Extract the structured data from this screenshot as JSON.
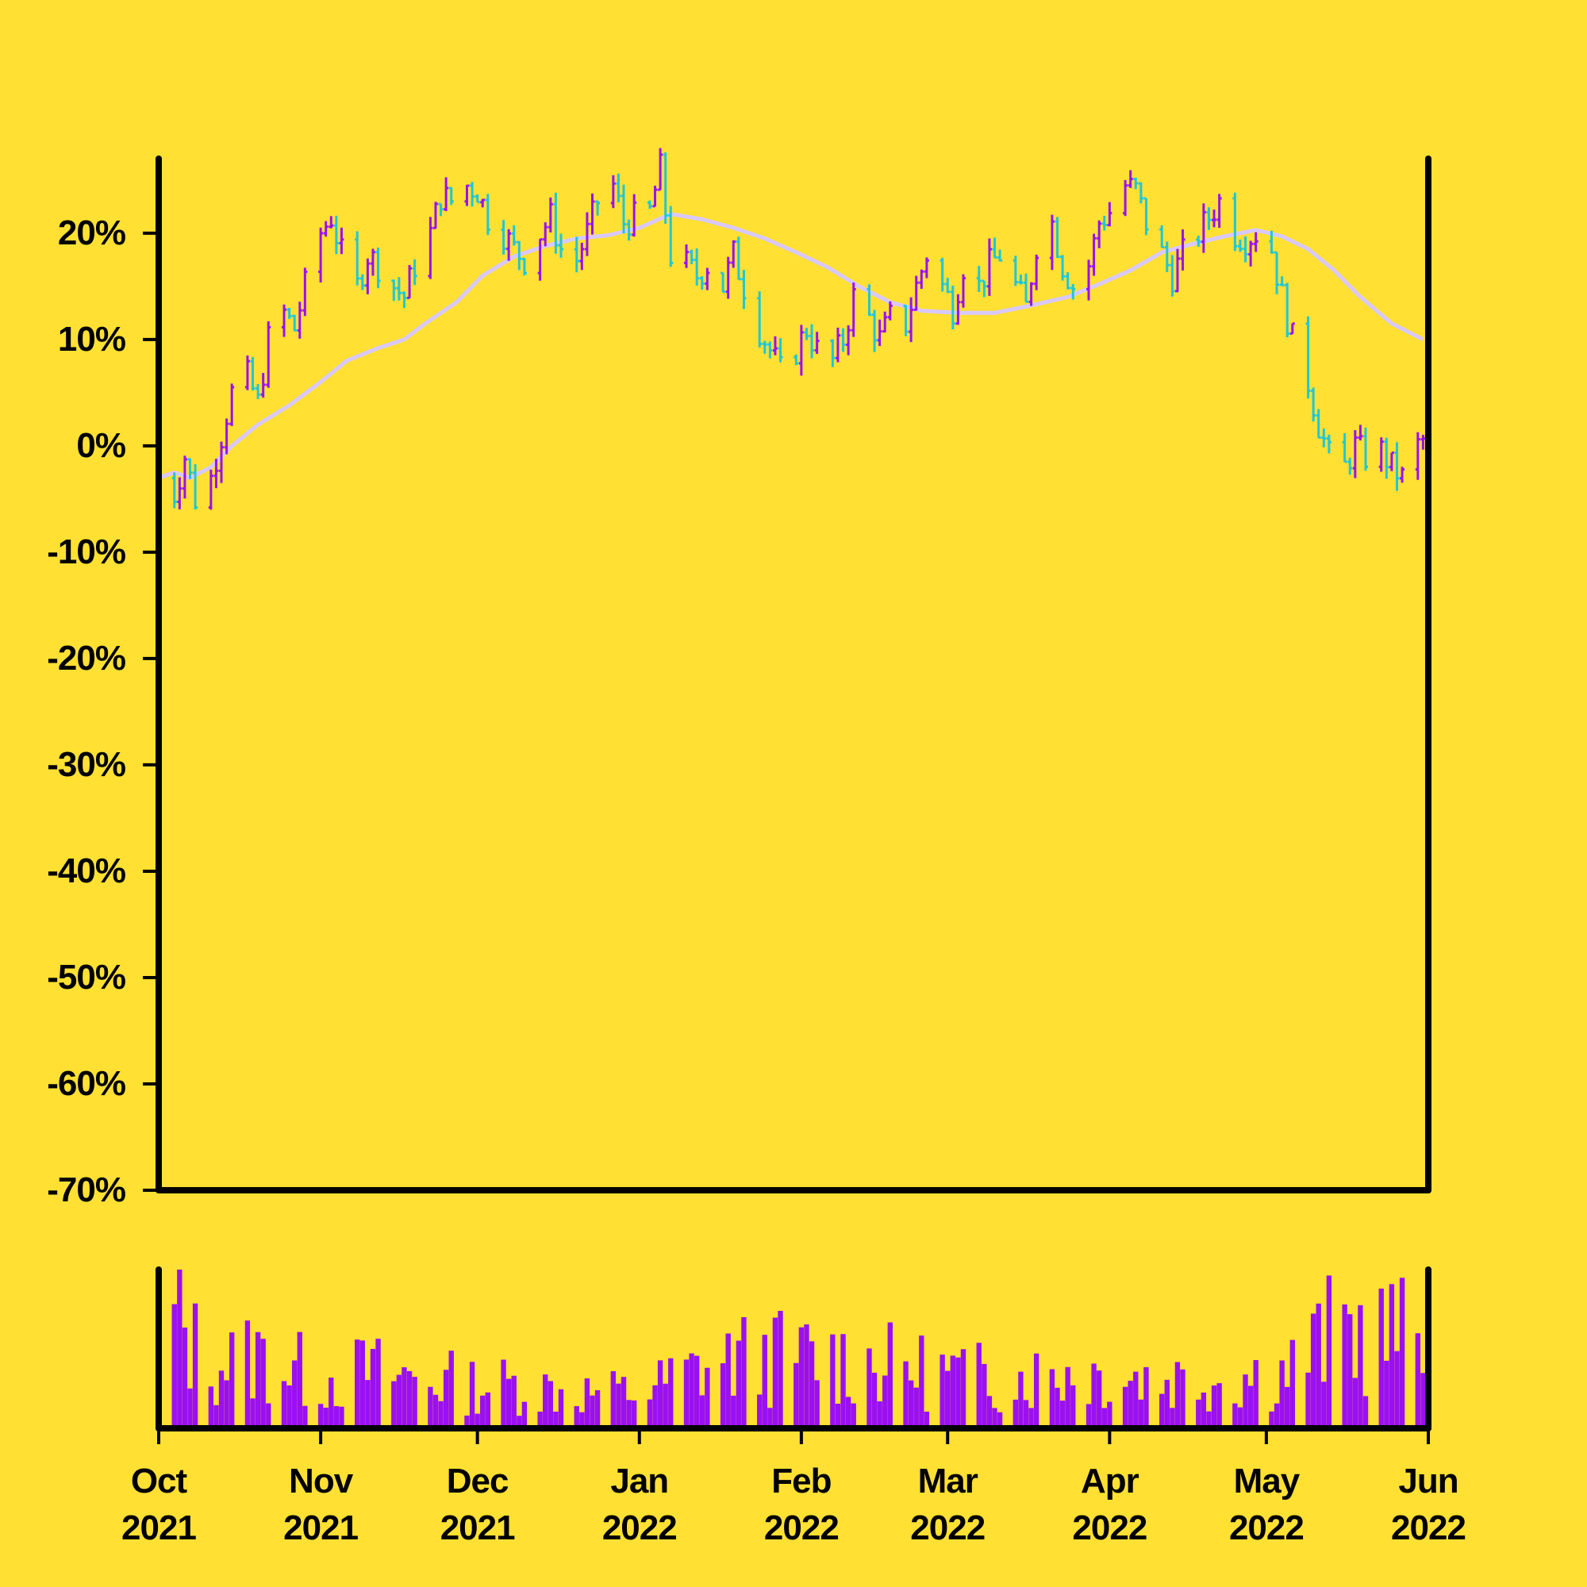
{
  "chart_data": {
    "type": "ohlc",
    "title": "",
    "xlabel": "",
    "ylabel": "",
    "ylim": [
      -0.7,
      0.27
    ],
    "y_ticks": [
      "20%",
      "10%",
      "0%",
      "-10%",
      "-20%",
      "-30%",
      "-40%",
      "-50%",
      "-60%",
      "-70%"
    ],
    "y_tick_values": [
      0.2,
      0.1,
      0.0,
      -0.1,
      -0.2,
      -0.3,
      -0.4,
      -0.5,
      -0.6,
      -0.7
    ],
    "x_ticks": [
      {
        "month": "Oct",
        "year": "2021",
        "date": "2021-10-01"
      },
      {
        "month": "Nov",
        "year": "2021",
        "date": "2021-11-01"
      },
      {
        "month": "Dec",
        "year": "2021",
        "date": "2021-12-01"
      },
      {
        "month": "Jan",
        "year": "2022",
        "date": "2022-01-01"
      },
      {
        "month": "Feb",
        "year": "2022",
        "date": "2022-02-01"
      },
      {
        "month": "Mar",
        "year": "2022",
        "date": "2022-03-01"
      },
      {
        "month": "Apr",
        "year": "2022",
        "date": "2022-04-01"
      },
      {
        "month": "May",
        "year": "2022",
        "date": "2022-05-01"
      },
      {
        "month": "Jun",
        "year": "2022",
        "date": "2022-06-01"
      }
    ],
    "xlim": [
      "2021-10-01",
      "2022-06-01"
    ],
    "colors": {
      "background": "#ffe033",
      "up": "#9b10f2",
      "down": "#1ec8d6",
      "moving_average": "#d8c8ff",
      "volume": "#9b10f2",
      "axes": "#000000"
    },
    "close_path": [
      [
        "2021-10-01",
        -0.03
      ],
      [
        "2021-10-04",
        -0.045
      ],
      [
        "2021-10-06",
        -0.01
      ],
      [
        "2021-10-08",
        -0.05
      ],
      [
        "2021-10-11",
        -0.03
      ],
      [
        "2021-10-13",
        0.01
      ],
      [
        "2021-10-15",
        0.05
      ],
      [
        "2021-10-18",
        0.065
      ],
      [
        "2021-10-20",
        0.04
      ],
      [
        "2021-10-22",
        0.1
      ],
      [
        "2021-10-25",
        0.125
      ],
      [
        "2021-10-27",
        0.11
      ],
      [
        "2021-10-29",
        0.15
      ],
      [
        "2021-11-01",
        0.2
      ],
      [
        "2021-11-03",
        0.215
      ],
      [
        "2021-11-05",
        0.18
      ],
      [
        "2021-11-08",
        0.15
      ],
      [
        "2021-11-10",
        0.18
      ],
      [
        "2021-11-12",
        0.17
      ],
      [
        "2021-11-15",
        0.15
      ],
      [
        "2021-11-17",
        0.14
      ],
      [
        "2021-11-19",
        0.17
      ],
      [
        "2021-11-22",
        0.2
      ],
      [
        "2021-11-24",
        0.235
      ],
      [
        "2021-11-26",
        0.23
      ],
      [
        "2021-11-29",
        0.245
      ],
      [
        "2021-12-01",
        0.24
      ],
      [
        "2021-12-03",
        0.215
      ],
      [
        "2021-12-06",
        0.2
      ],
      [
        "2021-12-08",
        0.185
      ],
      [
        "2021-12-10",
        0.175
      ],
      [
        "2021-12-13",
        0.2
      ],
      [
        "2021-12-15",
        0.215
      ],
      [
        "2021-12-17",
        0.185
      ],
      [
        "2021-12-20",
        0.175
      ],
      [
        "2021-12-22",
        0.2
      ],
      [
        "2021-12-24",
        0.23
      ],
      [
        "2021-12-27",
        0.245
      ],
      [
        "2021-12-29",
        0.21
      ],
      [
        "2022-01-03",
        0.22
      ],
      [
        "2022-01-05",
        0.26
      ],
      [
        "2022-01-07",
        0.18
      ],
      [
        "2022-01-10",
        0.17
      ],
      [
        "2022-01-12",
        0.16
      ],
      [
        "2022-01-14",
        0.17
      ],
      [
        "2022-01-17",
        0.15
      ],
      [
        "2022-01-19",
        0.18
      ],
      [
        "2022-01-21",
        0.15
      ],
      [
        "2022-01-24",
        0.11
      ],
      [
        "2022-01-26",
        0.09
      ],
      [
        "2022-01-28",
        0.07
      ],
      [
        "2022-01-31",
        0.09
      ],
      [
        "2022-02-02",
        0.11
      ],
      [
        "2022-02-04",
        0.09
      ],
      [
        "2022-02-07",
        0.08
      ],
      [
        "2022-02-09",
        0.1
      ],
      [
        "2022-02-11",
        0.14
      ],
      [
        "2022-02-14",
        0.12
      ],
      [
        "2022-02-16",
        0.1
      ],
      [
        "2022-02-18",
        0.12
      ],
      [
        "2022-02-21",
        0.115
      ],
      [
        "2022-02-23",
        0.15
      ],
      [
        "2022-02-25",
        0.18
      ],
      [
        "2022-02-28",
        0.15
      ],
      [
        "2022-03-02",
        0.13
      ],
      [
        "2022-03-04",
        0.17
      ],
      [
        "2022-03-07",
        0.15
      ],
      [
        "2022-03-09",
        0.17
      ],
      [
        "2022-03-11",
        0.18
      ],
      [
        "2022-03-14",
        0.15
      ],
      [
        "2022-03-16",
        0.13
      ],
      [
        "2022-03-18",
        0.19
      ],
      [
        "2022-03-21",
        0.21
      ],
      [
        "2022-03-23",
        0.17
      ],
      [
        "2022-03-25",
        0.15
      ],
      [
        "2022-03-28",
        0.17
      ],
      [
        "2022-03-30",
        0.21
      ],
      [
        "2022-04-01",
        0.22
      ],
      [
        "2022-04-04",
        0.245
      ],
      [
        "2022-04-06",
        0.24
      ],
      [
        "2022-04-08",
        0.21
      ],
      [
        "2022-04-11",
        0.18
      ],
      [
        "2022-04-13",
        0.16
      ],
      [
        "2022-04-15",
        0.18
      ],
      [
        "2022-04-18",
        0.2
      ],
      [
        "2022-04-20",
        0.215
      ],
      [
        "2022-04-22",
        0.23
      ],
      [
        "2022-04-25",
        0.2
      ],
      [
        "2022-04-27",
        0.195
      ],
      [
        "2022-04-29",
        0.2
      ],
      [
        "2022-05-02",
        0.185
      ],
      [
        "2022-05-04",
        0.14
      ],
      [
        "2022-05-06",
        0.1
      ],
      [
        "2022-05-09",
        0.06
      ],
      [
        "2022-05-11",
        0.02
      ],
      [
        "2022-05-13",
        -0.01
      ],
      [
        "2022-05-16",
        -0.02
      ],
      [
        "2022-05-18",
        0.0
      ],
      [
        "2022-05-20",
        -0.01
      ],
      [
        "2022-05-23",
        -0.005
      ],
      [
        "2022-05-25",
        -0.02
      ],
      [
        "2022-05-27",
        -0.03
      ],
      [
        "2022-05-30",
        0.0
      ],
      [
        "2022-06-01",
        0.01
      ]
    ],
    "moving_average": [
      [
        "2021-10-01",
        -0.03
      ],
      [
        "2021-10-04",
        -0.025
      ],
      [
        "2021-10-07",
        -0.03
      ],
      [
        "2021-10-11",
        -0.02
      ],
      [
        "2021-10-15",
        0.0
      ],
      [
        "2021-10-20",
        0.02
      ],
      [
        "2021-10-26",
        0.038
      ],
      [
        "2021-11-01",
        0.06
      ],
      [
        "2021-11-06",
        0.08
      ],
      [
        "2021-11-12",
        0.092
      ],
      [
        "2021-11-17",
        0.1
      ],
      [
        "2021-11-21",
        0.115
      ],
      [
        "2021-11-27",
        0.135
      ],
      [
        "2021-12-02",
        0.16
      ],
      [
        "2021-12-08",
        0.178
      ],
      [
        "2021-12-14",
        0.188
      ],
      [
        "2021-12-20",
        0.195
      ],
      [
        "2021-12-26",
        0.198
      ],
      [
        "2022-01-01",
        0.205
      ],
      [
        "2022-01-07",
        0.218
      ],
      [
        "2022-01-13",
        0.213
      ],
      [
        "2022-01-19",
        0.205
      ],
      [
        "2022-01-25",
        0.195
      ],
      [
        "2022-01-31",
        0.182
      ],
      [
        "2022-02-06",
        0.168
      ],
      [
        "2022-02-12",
        0.15
      ],
      [
        "2022-02-18",
        0.135
      ],
      [
        "2022-02-24",
        0.127
      ],
      [
        "2022-03-03",
        0.125
      ],
      [
        "2022-03-10",
        0.125
      ],
      [
        "2022-03-17",
        0.132
      ],
      [
        "2022-03-24",
        0.14
      ],
      [
        "2022-03-30",
        0.152
      ],
      [
        "2022-04-05",
        0.165
      ],
      [
        "2022-04-11",
        0.182
      ],
      [
        "2022-04-17",
        0.19
      ],
      [
        "2022-04-23",
        0.197
      ],
      [
        "2022-04-29",
        0.203
      ],
      [
        "2022-05-04",
        0.197
      ],
      [
        "2022-05-09",
        0.185
      ],
      [
        "2022-05-14",
        0.165
      ],
      [
        "2022-05-19",
        0.14
      ],
      [
        "2022-05-25",
        0.115
      ],
      [
        "2022-05-31",
        0.1
      ]
    ],
    "volume": {
      "units": "relative",
      "ylim": [
        0,
        1
      ],
      "profile": [
        [
          "2021-10-01",
          0.95
        ],
        [
          "2021-10-10",
          0.45
        ],
        [
          "2021-10-20",
          0.5
        ],
        [
          "2021-11-01",
          0.35
        ],
        [
          "2021-11-10",
          0.4
        ],
        [
          "2021-11-20",
          0.35
        ],
        [
          "2021-12-01",
          0.3
        ],
        [
          "2021-12-10",
          0.3
        ],
        [
          "2021-12-20",
          0.25
        ],
        [
          "2022-01-01",
          0.25
        ],
        [
          "2022-01-15",
          0.45
        ],
        [
          "2022-01-25",
          0.5
        ],
        [
          "2022-02-05",
          0.5
        ],
        [
          "2022-02-15",
          0.45
        ],
        [
          "2022-02-25",
          0.4
        ],
        [
          "2022-03-10",
          0.35
        ],
        [
          "2022-03-25",
          0.4
        ],
        [
          "2022-04-10",
          0.35
        ],
        [
          "2022-04-25",
          0.35
        ],
        [
          "2022-05-05",
          0.4
        ],
        [
          "2022-05-15",
          0.7
        ],
        [
          "2022-05-25",
          0.65
        ],
        [
          "2022-06-01",
          0.6
        ]
      ]
    }
  }
}
